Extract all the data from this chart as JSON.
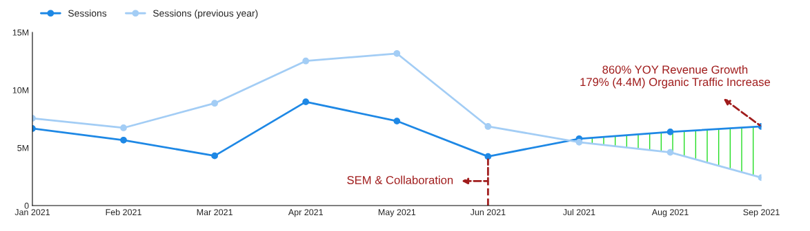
{
  "chart_data": {
    "type": "line",
    "categories": [
      "Jan 2021",
      "Feb 2021",
      "Mar 2021",
      "Apr 2021",
      "May 2021",
      "Jun 2021",
      "Jul 2021",
      "Aug 2021",
      "Sep 2021"
    ],
    "series": [
      {
        "name": "Sessions",
        "color": "#1e88e5",
        "values": [
          6.67,
          5.67,
          4.31,
          8.98,
          7.32,
          4.25,
          5.79,
          6.38,
          6.85
        ],
        "lower": [
          null,
          null,
          null,
          null,
          null,
          null,
          5.49,
          4.61,
          2.42
        ],
        "upper": [
          null,
          null,
          null,
          null,
          null,
          null,
          5.79,
          6.38,
          6.85
        ]
      },
      {
        "name": "Sessions (previous year)",
        "color": "#a3cdf5",
        "values": [
          7.56,
          6.73,
          8.86,
          12.52,
          13.17,
          6.85,
          5.49,
          4.61,
          2.42
        ]
      }
    ],
    "ylim": [
      0,
      15
    ],
    "yticks": [
      0,
      {
        "value": 5,
        "label": "5M"
      },
      {
        "value": 10,
        "label": "10M"
      },
      {
        "value": 15,
        "label": "15M"
      }
    ],
    "annotations": [
      {
        "text": "SEM & Collaboration",
        "x": "Jun 2021",
        "y": 4.25
      },
      {
        "text": "860% YOY Revenue Growth\n179% (4.4M) Organic Traffic Increase",
        "x": "Sep 2021",
        "y": 6.85
      }
    ],
    "marker": "circle",
    "line_style": "solid",
    "grid": false,
    "legend": "top left"
  }
}
